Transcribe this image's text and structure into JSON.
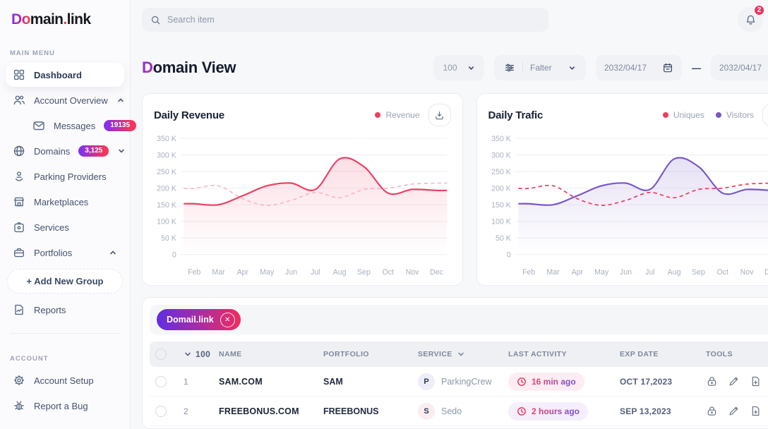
{
  "colors": {
    "accent_red": "#ee3e62",
    "accent_purple": "#7857c8",
    "badge_gradient_from": "#7b2ff7",
    "badge_gradient_to": "#f5365c"
  },
  "sidebar": {
    "logo": {
      "gradient_part": "Do",
      "black_part": "main",
      "dot": ".",
      "suffix": "link"
    },
    "main_menu_label": "MAIN MENU",
    "account_label": "ACCOUNT",
    "items": [
      {
        "label": "Dashboard"
      },
      {
        "label": "Account Overview"
      },
      {
        "label": "Messages",
        "badge": "19135"
      },
      {
        "label": "Domains",
        "badge": "3,125"
      },
      {
        "label": "Parking Providers"
      },
      {
        "label": "Marketplaces"
      },
      {
        "label": "Services"
      },
      {
        "label": "Portfolios"
      },
      {
        "label": "+ Add New Group"
      },
      {
        "label": "Reports"
      }
    ],
    "account_items": [
      {
        "label": "Account Setup"
      },
      {
        "label": "Report a Bug"
      }
    ]
  },
  "topbar": {
    "search_placeholder": "Search item",
    "notification_count": "2"
  },
  "page": {
    "title_initial": "D",
    "title_rest": "omain View"
  },
  "controls": {
    "page_size": "100",
    "filter_label": "Falter",
    "date_from": "2032/04/17",
    "date_separator": "—",
    "date_to": "2032/04/17"
  },
  "chart_data": [
    {
      "type": "area",
      "title": "Daily Revenue",
      "legend": [
        {
          "label": "Revenue",
          "color": "#ee3e62"
        }
      ],
      "x_labels": [
        "Feb",
        "Mar",
        "Apr",
        "May",
        "Jun",
        "Jul",
        "Aug",
        "Sep",
        "Oct",
        "Nov",
        "Dec"
      ],
      "y_ticks": [
        {
          "label": "350 K",
          "value": 350
        },
        {
          "label": "300 K",
          "value": 300
        },
        {
          "label": "250 K",
          "value": 250
        },
        {
          "label": "200 K",
          "value": 200
        },
        {
          "label": "150 K",
          "value": 150
        },
        {
          "label": "100 K",
          "value": 100
        },
        {
          "label": "50 K",
          "value": 50
        },
        {
          "label": "0",
          "value": 0
        }
      ],
      "y_max": 350,
      "unit": "K",
      "series": [
        {
          "name": "Revenue",
          "style": "solid",
          "color": "#ee3e62",
          "fill_from": "rgba(238,62,98,0.17)",
          "fill_to": "rgba(238,62,98,0)",
          "values": [
            153,
            150,
            177,
            207,
            215,
            196,
            288,
            265,
            185,
            196,
            193
          ]
        },
        {
          "style": "dashed",
          "color": "#f7b9c8",
          "values": [
            199,
            207,
            168,
            148,
            163,
            187,
            171,
            196,
            200,
            212,
            215
          ]
        }
      ]
    },
    {
      "type": "area",
      "title": "Daily Trafic",
      "legend": [
        {
          "label": "Uniques",
          "color": "#ee3e62"
        },
        {
          "label": "Visitors",
          "color": "#7857c8"
        }
      ],
      "x_labels": [
        "Feb",
        "Mar",
        "Apr",
        "May",
        "Jun",
        "Jul",
        "Aug",
        "Sep",
        "Oct",
        "Nov",
        "Dec"
      ],
      "y_ticks": [
        {
          "label": "350 K",
          "value": 350
        },
        {
          "label": "300 K",
          "value": 300
        },
        {
          "label": "250 K",
          "value": 250
        },
        {
          "label": "200 K",
          "value": 200
        },
        {
          "label": "150 K",
          "value": 150
        },
        {
          "label": "100 K",
          "value": 100
        },
        {
          "label": "50 K",
          "value": 50
        },
        {
          "label": "0",
          "value": 0
        }
      ],
      "y_max": 350,
      "unit": "K",
      "series": [
        {
          "name": "Visitors",
          "style": "solid",
          "color": "#7857c8",
          "fill_from": "rgba(120,87,200,0.18)",
          "fill_to": "rgba(120,87,200,0)",
          "values": [
            153,
            150,
            177,
            207,
            215,
            196,
            288,
            265,
            185,
            196,
            193
          ]
        },
        {
          "name": "Uniques",
          "style": "dashed",
          "color": "#ee3e62",
          "values": [
            199,
            207,
            168,
            148,
            163,
            187,
            171,
            196,
            200,
            212,
            215
          ]
        }
      ]
    }
  ],
  "table": {
    "filter_tag": "Domail.link",
    "columns": {
      "count": "100",
      "name": "NAME",
      "portfolio": "PORTFOLIO",
      "service": "SERVICE",
      "last_activity": "LAST ACTIVITY",
      "exp_date": "EXP DATE",
      "tools": "TOOLS"
    },
    "rows": [
      {
        "index": "1",
        "name": "SAM.COM",
        "portfolio": "SAM",
        "service_initial": "P",
        "service_name": "ParkingCrew",
        "service_badge_bg": "#efecf9",
        "activity": "16 min ago",
        "activity_bg": "#fdedf2",
        "exp_date": "OCT 17,2023"
      },
      {
        "index": "2",
        "name": "FREEBONUS.COM",
        "portfolio": "FREEBONUS",
        "service_initial": "S",
        "service_name": "Sedo",
        "service_badge_bg": "#fbecef",
        "activity": "2 hours ago",
        "activity_bg": "#f5eefb",
        "exp_date": "SEP 13,2023"
      }
    ]
  }
}
